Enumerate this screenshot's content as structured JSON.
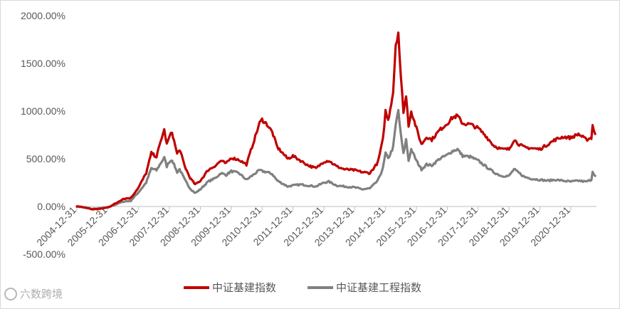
{
  "chart_data": {
    "type": "line",
    "title": "",
    "xlabel": "",
    "ylabel": "",
    "ylim": [
      -500,
      2000
    ],
    "y_ticks": [
      "2000.00%",
      "1500.00%",
      "1000.00%",
      "500.00%",
      "0.00%",
      "-500.00%"
    ],
    "x_ticks": [
      "2004-12-31",
      "2005-12-31",
      "2006-12-31",
      "2007-12-31",
      "2008-12-31",
      "2009-12-31",
      "2010-12-31",
      "2011-12-31",
      "2012-12-31",
      "2013-12-31",
      "2014-12-31",
      "2015-12-31",
      "2016-12-31",
      "2017-12-31",
      "2018-12-31",
      "2019-12-31",
      "2020-12-31"
    ],
    "legend_position": "bottom",
    "grid": false,
    "series": [
      {
        "name": "中证基建指数",
        "color": "#c00000",
        "points": [
          [
            "2004-12-31",
            0
          ],
          [
            "2005-03-31",
            -10
          ],
          [
            "2005-06-30",
            -30
          ],
          [
            "2005-09-30",
            -25
          ],
          [
            "2005-12-31",
            -10
          ],
          [
            "2006-03-31",
            30
          ],
          [
            "2006-06-30",
            80
          ],
          [
            "2006-09-30",
            90
          ],
          [
            "2006-12-31",
            200
          ],
          [
            "2007-03-31",
            350
          ],
          [
            "2007-05-31",
            560
          ],
          [
            "2007-07-31",
            520
          ],
          [
            "2007-09-30",
            720
          ],
          [
            "2007-10-31",
            800
          ],
          [
            "2007-11-30",
            650
          ],
          [
            "2007-12-31",
            730
          ],
          [
            "2008-01-31",
            780
          ],
          [
            "2008-03-31",
            550
          ],
          [
            "2008-04-30",
            600
          ],
          [
            "2008-06-30",
            420
          ],
          [
            "2008-08-31",
            300
          ],
          [
            "2008-10-31",
            230
          ],
          [
            "2008-12-31",
            270
          ],
          [
            "2009-03-31",
            380
          ],
          [
            "2009-06-30",
            430
          ],
          [
            "2009-08-31",
            480
          ],
          [
            "2009-10-31",
            450
          ],
          [
            "2009-12-31",
            510
          ],
          [
            "2010-03-31",
            490
          ],
          [
            "2010-06-30",
            440
          ],
          [
            "2010-09-30",
            700
          ],
          [
            "2010-11-30",
            870
          ],
          [
            "2010-12-31",
            910
          ],
          [
            "2011-02-28",
            860
          ],
          [
            "2011-04-30",
            780
          ],
          [
            "2011-06-30",
            620
          ],
          [
            "2011-08-31",
            560
          ],
          [
            "2011-10-31",
            500
          ],
          [
            "2011-12-31",
            530
          ],
          [
            "2012-03-31",
            480
          ],
          [
            "2012-06-30",
            430
          ],
          [
            "2012-09-30",
            400
          ],
          [
            "2012-12-31",
            470
          ],
          [
            "2013-02-28",
            480
          ],
          [
            "2013-05-31",
            420
          ],
          [
            "2013-08-31",
            390
          ],
          [
            "2013-12-31",
            380
          ],
          [
            "2014-03-31",
            360
          ],
          [
            "2014-06-30",
            350
          ],
          [
            "2014-09-30",
            460
          ],
          [
            "2014-11-30",
            700
          ],
          [
            "2014-12-31",
            1000
          ],
          [
            "2015-01-31",
            900
          ],
          [
            "2015-03-31",
            1200
          ],
          [
            "2015-04-30",
            1700
          ],
          [
            "2015-05-31",
            1830
          ],
          [
            "2015-06-30",
            1350
          ],
          [
            "2015-07-31",
            1000
          ],
          [
            "2015-08-31",
            1150
          ],
          [
            "2015-09-30",
            850
          ],
          [
            "2015-10-31",
            1000
          ],
          [
            "2015-12-31",
            820
          ],
          [
            "2016-02-29",
            650
          ],
          [
            "2016-04-30",
            730
          ],
          [
            "2016-06-30",
            700
          ],
          [
            "2016-09-30",
            800
          ],
          [
            "2016-12-31",
            870
          ],
          [
            "2017-02-28",
            930
          ],
          [
            "2017-04-30",
            950
          ],
          [
            "2017-06-30",
            870
          ],
          [
            "2017-09-30",
            860
          ],
          [
            "2017-12-31",
            820
          ],
          [
            "2018-03-31",
            740
          ],
          [
            "2018-06-30",
            640
          ],
          [
            "2018-09-30",
            600
          ],
          [
            "2018-12-31",
            600
          ],
          [
            "2019-02-28",
            700
          ],
          [
            "2019-04-30",
            650
          ],
          [
            "2019-06-30",
            620
          ],
          [
            "2019-09-30",
            610
          ],
          [
            "2019-12-31",
            600
          ],
          [
            "2020-03-31",
            650
          ],
          [
            "2020-06-30",
            700
          ],
          [
            "2020-09-30",
            730
          ],
          [
            "2020-12-31",
            720
          ],
          [
            "2021-03-31",
            760
          ],
          [
            "2021-06-30",
            700
          ],
          [
            "2021-08-31",
            720
          ],
          [
            "2021-09-15",
            850
          ],
          [
            "2021-10-15",
            760
          ]
        ]
      },
      {
        "name": "中证基建工程指数",
        "color": "#808080",
        "points": [
          [
            "2004-12-31",
            0
          ],
          [
            "2005-03-31",
            -10
          ],
          [
            "2005-06-30",
            -25
          ],
          [
            "2005-09-30",
            -20
          ],
          [
            "2005-12-31",
            -10
          ],
          [
            "2006-03-31",
            20
          ],
          [
            "2006-06-30",
            50
          ],
          [
            "2006-09-30",
            60
          ],
          [
            "2006-12-31",
            150
          ],
          [
            "2007-03-31",
            250
          ],
          [
            "2007-05-31",
            400
          ],
          [
            "2007-07-31",
            380
          ],
          [
            "2007-09-30",
            470
          ],
          [
            "2007-10-31",
            510
          ],
          [
            "2007-11-30",
            420
          ],
          [
            "2007-12-31",
            470
          ],
          [
            "2008-01-31",
            490
          ],
          [
            "2008-03-31",
            360
          ],
          [
            "2008-04-30",
            390
          ],
          [
            "2008-06-30",
            280
          ],
          [
            "2008-08-31",
            190
          ],
          [
            "2008-10-31",
            140
          ],
          [
            "2008-12-31",
            180
          ],
          [
            "2009-03-31",
            260
          ],
          [
            "2009-06-30",
            300
          ],
          [
            "2009-08-31",
            350
          ],
          [
            "2009-10-31",
            330
          ],
          [
            "2009-12-31",
            370
          ],
          [
            "2010-03-31",
            350
          ],
          [
            "2010-06-30",
            280
          ],
          [
            "2010-09-30",
            340
          ],
          [
            "2010-11-30",
            380
          ],
          [
            "2010-12-31",
            370
          ],
          [
            "2011-02-28",
            360
          ],
          [
            "2011-04-30",
            340
          ],
          [
            "2011-06-30",
            270
          ],
          [
            "2011-08-31",
            240
          ],
          [
            "2011-10-31",
            210
          ],
          [
            "2011-12-31",
            220
          ],
          [
            "2012-03-31",
            230
          ],
          [
            "2012-06-30",
            220
          ],
          [
            "2012-09-30",
            210
          ],
          [
            "2012-12-31",
            250
          ],
          [
            "2013-02-28",
            260
          ],
          [
            "2013-05-31",
            220
          ],
          [
            "2013-08-31",
            210
          ],
          [
            "2013-12-31",
            200
          ],
          [
            "2014-03-31",
            180
          ],
          [
            "2014-06-30",
            190
          ],
          [
            "2014-09-30",
            270
          ],
          [
            "2014-11-30",
            400
          ],
          [
            "2014-12-31",
            560
          ],
          [
            "2015-01-31",
            500
          ],
          [
            "2015-03-31",
            620
          ],
          [
            "2015-04-30",
            850
          ],
          [
            "2015-05-31",
            1010
          ],
          [
            "2015-06-30",
            750
          ],
          [
            "2015-07-31",
            550
          ],
          [
            "2015-08-31",
            700
          ],
          [
            "2015-09-30",
            480
          ],
          [
            "2015-10-31",
            600
          ],
          [
            "2015-12-31",
            480
          ],
          [
            "2016-02-29",
            390
          ],
          [
            "2016-04-30",
            440
          ],
          [
            "2016-06-30",
            430
          ],
          [
            "2016-09-30",
            500
          ],
          [
            "2016-12-31",
            540
          ],
          [
            "2017-02-28",
            580
          ],
          [
            "2017-04-30",
            600
          ],
          [
            "2017-06-30",
            530
          ],
          [
            "2017-09-30",
            520
          ],
          [
            "2017-12-31",
            480
          ],
          [
            "2018-03-31",
            420
          ],
          [
            "2018-06-30",
            360
          ],
          [
            "2018-09-30",
            320
          ],
          [
            "2018-12-31",
            320
          ],
          [
            "2019-02-28",
            390
          ],
          [
            "2019-04-30",
            350
          ],
          [
            "2019-06-30",
            310
          ],
          [
            "2019-09-30",
            290
          ],
          [
            "2019-12-31",
            280
          ],
          [
            "2020-03-31",
            270
          ],
          [
            "2020-06-30",
            280
          ],
          [
            "2020-09-30",
            270
          ],
          [
            "2020-12-31",
            260
          ],
          [
            "2021-03-31",
            270
          ],
          [
            "2021-06-30",
            260
          ],
          [
            "2021-08-31",
            280
          ],
          [
            "2021-09-15",
            370
          ],
          [
            "2021-10-15",
            320
          ]
        ]
      }
    ]
  },
  "watermark": {
    "text": "六数跨境"
  }
}
